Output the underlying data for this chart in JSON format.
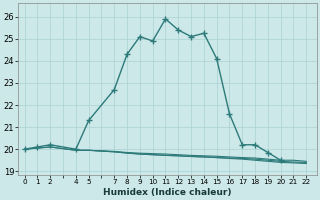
{
  "xlabel": "Humidex (Indice chaleur)",
  "bg_color": "#cce8e8",
  "grid_color": "#b0d4d4",
  "line_color": "#2d7a7a",
  "main_line_x": [
    0,
    1,
    2,
    4,
    5,
    7,
    8,
    9,
    10,
    11,
    12,
    13,
    14,
    15,
    16,
    17,
    18,
    19,
    20
  ],
  "main_line_y": [
    20.0,
    20.1,
    20.2,
    20.0,
    21.3,
    22.7,
    24.3,
    25.1,
    24.9,
    25.9,
    25.4,
    25.1,
    25.25,
    24.1,
    21.6,
    20.2,
    20.2,
    19.85,
    19.5
  ],
  "flat_line1_x": [
    0,
    1,
    2,
    4,
    5,
    7,
    8,
    9,
    10,
    11,
    12,
    13,
    14,
    15,
    16,
    17,
    18,
    19,
    20,
    21,
    22
  ],
  "flat_line1_y": [
    20.0,
    20.05,
    20.1,
    19.95,
    19.95,
    19.9,
    19.85,
    19.82,
    19.8,
    19.78,
    19.75,
    19.72,
    19.7,
    19.68,
    19.65,
    19.62,
    19.6,
    19.55,
    19.5,
    19.5,
    19.45
  ],
  "flat_line2_x": [
    0,
    1,
    2,
    4,
    5,
    7,
    8,
    9,
    10,
    11,
    12,
    13,
    14,
    15,
    16,
    17,
    18,
    19,
    20,
    21,
    22
  ],
  "flat_line2_y": [
    20.0,
    20.05,
    20.1,
    19.95,
    19.95,
    19.88,
    19.82,
    19.78,
    19.75,
    19.72,
    19.7,
    19.67,
    19.65,
    19.62,
    19.6,
    19.58,
    19.55,
    19.5,
    19.45,
    19.42,
    19.4
  ],
  "flat_line3_x": [
    4,
    5,
    7,
    8,
    9,
    10,
    11,
    12,
    13,
    14,
    15,
    16,
    17,
    18,
    19,
    20,
    21,
    22
  ],
  "flat_line3_y": [
    19.95,
    19.95,
    19.88,
    19.83,
    19.78,
    19.75,
    19.72,
    19.7,
    19.67,
    19.65,
    19.62,
    19.58,
    19.55,
    19.5,
    19.45,
    19.4,
    19.38,
    19.35
  ],
  "all_xtick_vals": [
    0,
    1,
    2,
    3,
    4,
    5,
    6,
    7,
    8,
    9,
    10,
    11,
    12,
    13,
    14,
    15,
    16,
    17,
    18,
    19,
    20,
    21,
    22
  ],
  "xtick_labels": [
    "0",
    "1",
    "2",
    "",
    "4",
    "5",
    "",
    "7",
    "8",
    "9",
    "10",
    "11",
    "12",
    "13",
    "14",
    "15",
    "16",
    "17",
    "18",
    "19",
    "20",
    "21",
    "22"
  ],
  "yticks": [
    19,
    20,
    21,
    22,
    23,
    24,
    25,
    26
  ],
  "ylim": [
    18.85,
    26.6
  ],
  "xlim": [
    -0.5,
    22.8
  ]
}
